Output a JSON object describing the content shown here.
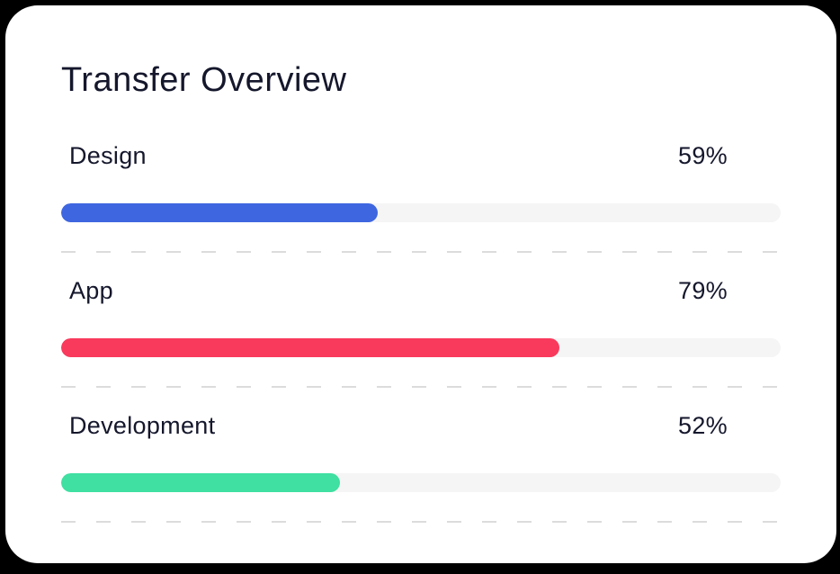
{
  "title": "Transfer Overview",
  "colors": {
    "page_background": "#000000",
    "card_background": "#ffffff",
    "text": "#15172c",
    "track": "#f5f5f5",
    "dash": "#dcdcdc",
    "design_bar": "#3e66e0",
    "app_bar": "#f93a5c",
    "development_bar": "#3fe0a1"
  },
  "rows": [
    {
      "label": "Design",
      "percent": "59%",
      "fill_width": "44%",
      "color": "#3e66e0"
    },
    {
      "label": "App",
      "percent": "79%",
      "fill_width": "69.3%",
      "color": "#f93a5c"
    },
    {
      "label": "Development",
      "percent": "52%",
      "fill_width": "38.8%",
      "color": "#3fe0a1"
    }
  ],
  "chart_data": {
    "type": "bar",
    "orientation": "horizontal",
    "title": "Transfer Overview",
    "categories": [
      "Design",
      "App",
      "Development"
    ],
    "values": [
      59,
      79,
      52
    ],
    "value_labels": [
      "59%",
      "79%",
      "52%"
    ],
    "visual_fill_percent_of_track": [
      44,
      69.3,
      38.8
    ],
    "bar_colors": [
      "#3e66e0",
      "#f93a5c",
      "#3fe0a1"
    ],
    "xlim": [
      0,
      100
    ],
    "grid": false,
    "legend": false
  }
}
